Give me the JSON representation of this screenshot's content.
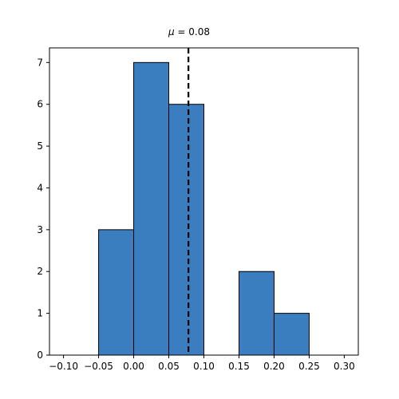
{
  "chart_data": {
    "type": "bar",
    "title_symbol": "μ",
    "title_value": " = 0.08",
    "bins": [
      {
        "start": -0.05,
        "end": 0.0,
        "count": 3
      },
      {
        "start": 0.0,
        "end": 0.05,
        "count": 7
      },
      {
        "start": 0.05,
        "end": 0.1,
        "count": 6
      },
      {
        "start": 0.15,
        "end": 0.2,
        "count": 2
      },
      {
        "start": 0.2,
        "end": 0.25,
        "count": 1
      }
    ],
    "mean_line": 0.078,
    "xlim": [
      -0.12,
      0.32
    ],
    "ylim": [
      0,
      7.35
    ],
    "x_ticks": [
      -0.1,
      -0.05,
      0.0,
      0.05,
      0.1,
      0.15,
      0.2,
      0.25,
      0.3
    ],
    "x_tick_labels": [
      "−0.10",
      "−0.05",
      "0.00",
      "0.05",
      "0.10",
      "0.15",
      "0.20",
      "0.25",
      "0.30"
    ],
    "y_ticks": [
      0,
      1,
      2,
      3,
      4,
      5,
      6,
      7
    ],
    "y_tick_labels": [
      "0",
      "1",
      "2",
      "3",
      "4",
      "5",
      "6",
      "7"
    ],
    "xlabel": "",
    "ylabel": "",
    "grid": false,
    "colors": {
      "bar_fill": "#3a7ebf",
      "bar_edge": "#000000",
      "mean_line": "#000000"
    }
  }
}
